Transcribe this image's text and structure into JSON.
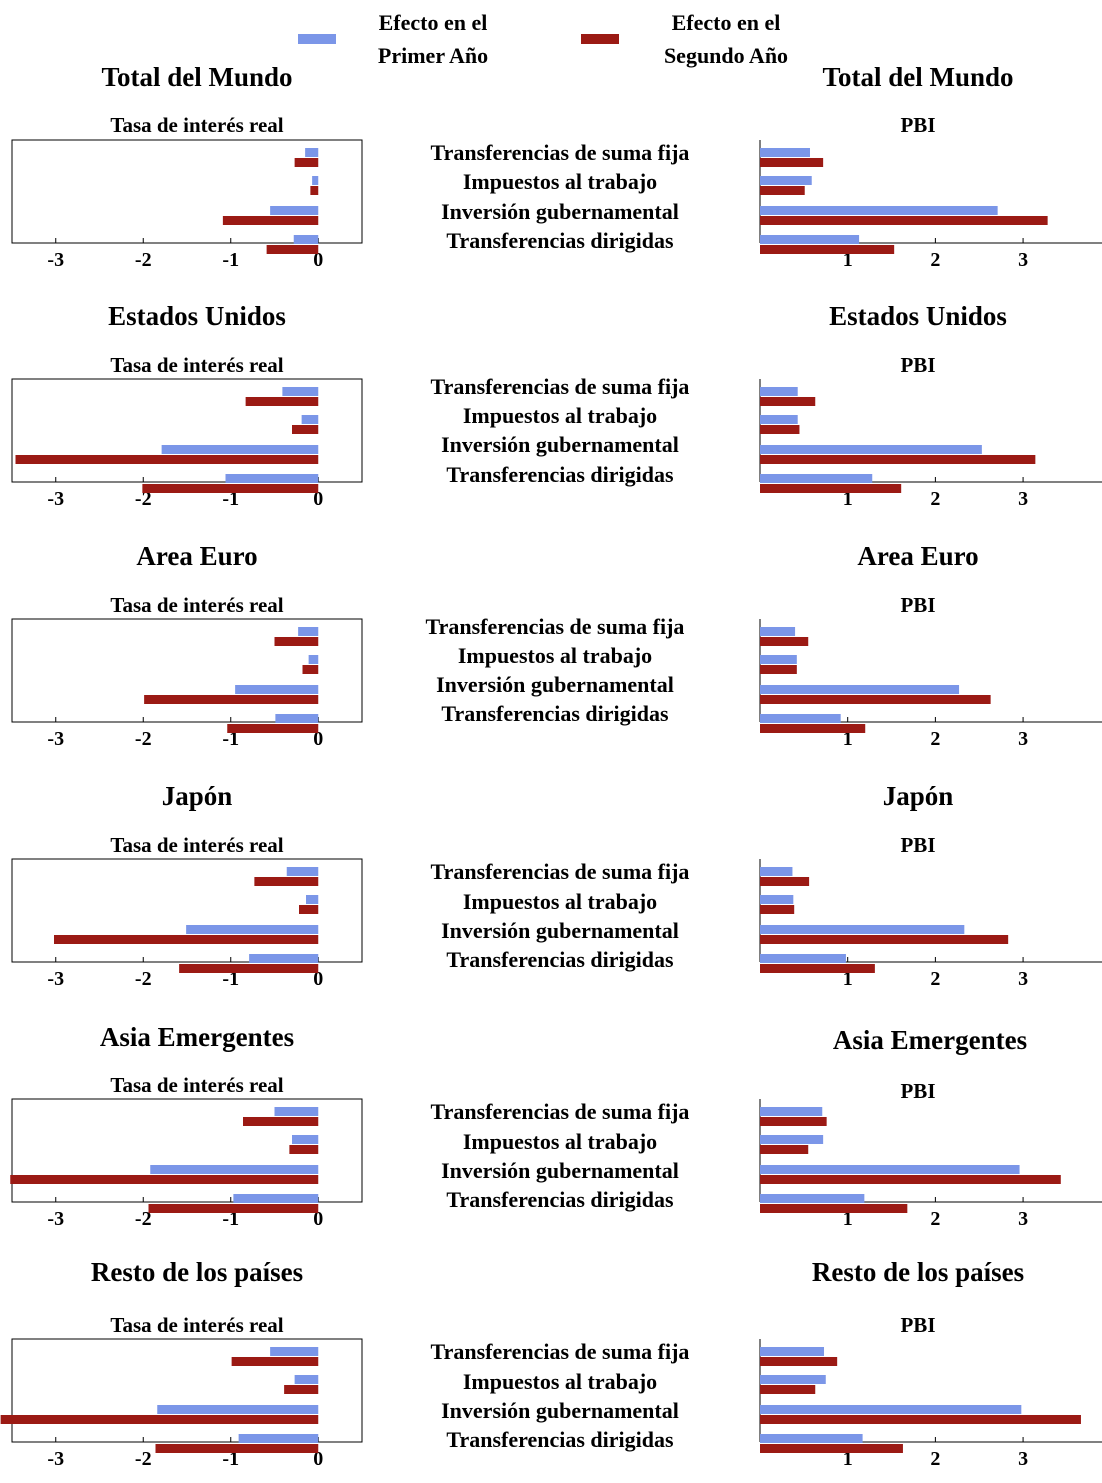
{
  "legend": {
    "items": [
      {
        "label_line1": "Efecto en el",
        "label_line2": "Primer Año",
        "color": "#7b96e8"
      },
      {
        "label_line1": "Efecto en el",
        "label_line2": "Segundo Año",
        "color": "#9b1a14"
      }
    ]
  },
  "colors": {
    "first_year": "#7b96e8",
    "second_year": "#9b1a14"
  },
  "chart_data": [
    {
      "type": "bar",
      "region": "Total del Mundo",
      "title": "Tasa de interés real",
      "xlim": [
        -3.5,
        0.5
      ],
      "xticks": [
        -3,
        -2,
        -1,
        0
      ],
      "categories": [
        "Transferencias de suma fija",
        "Impuestos al trabajo",
        "Inversión gubernamental",
        "Transferencias dirigidas"
      ],
      "series": [
        {
          "name": "Efecto en el Primer Año",
          "values": [
            -0.15,
            -0.07,
            -0.55,
            -0.28
          ]
        },
        {
          "name": "Efecto en el Segundo Año",
          "values": [
            -0.27,
            -0.09,
            -1.09,
            -0.59
          ]
        }
      ]
    },
    {
      "type": "bar",
      "region": "Total del Mundo",
      "title": "PBI",
      "xlim": [
        0,
        3.9
      ],
      "xticks": [
        1,
        2,
        3
      ],
      "categories": [
        "Transferencias de suma fija",
        "Impuestos al trabajo",
        "Inversión gubernamental",
        "Transferencias dirigidas"
      ],
      "series": [
        {
          "name": "Efecto en el Primer Año",
          "values": [
            0.57,
            0.59,
            2.71,
            1.13
          ]
        },
        {
          "name": "Efecto en el Segundo Año",
          "values": [
            0.72,
            0.51,
            3.28,
            1.53
          ]
        }
      ]
    },
    {
      "type": "bar",
      "region": "Estados Unidos",
      "title": "Tasa de interés real",
      "xlim": [
        -3.5,
        0.5
      ],
      "xticks": [
        -3,
        -2,
        -1,
        0
      ],
      "categories": [
        "Transferencias de suma fija",
        "Impuestos al trabajo",
        "Inversión gubernamental",
        "Transferencias dirigidas"
      ],
      "series": [
        {
          "name": "Efecto en el Primer Año",
          "values": [
            -0.41,
            -0.19,
            -1.79,
            -1.06
          ]
        },
        {
          "name": "Efecto en el Segundo Año",
          "values": [
            -0.83,
            -0.3,
            -3.46,
            -2.01
          ]
        }
      ]
    },
    {
      "type": "bar",
      "region": "Estados Unidos",
      "title": "PBI",
      "xlim": [
        0,
        3.9
      ],
      "xticks": [
        1,
        2,
        3
      ],
      "categories": [
        "Transferencias de suma fija",
        "Impuestos al trabajo",
        "Inversión gubernamental",
        "Transferencias dirigidas"
      ],
      "series": [
        {
          "name": "Efecto en el Primer Año",
          "values": [
            0.43,
            0.43,
            2.53,
            1.28
          ]
        },
        {
          "name": "Efecto en el Segundo Año",
          "values": [
            0.63,
            0.45,
            3.14,
            1.61
          ]
        }
      ]
    },
    {
      "type": "bar",
      "region": "Area Euro",
      "title": "Tasa de interés real",
      "xlim": [
        -3.5,
        0.5
      ],
      "xticks": [
        -3,
        -2,
        -1,
        0
      ],
      "categories": [
        "Transferencias de suma fija",
        "Impuestos al trabajo",
        "Inversión gubernamental",
        "Transferencias dirigidas"
      ],
      "series": [
        {
          "name": "Efecto en el Primer Año",
          "values": [
            -0.23,
            -0.11,
            -0.95,
            -0.49
          ]
        },
        {
          "name": "Efecto en el Segundo Año",
          "values": [
            -0.5,
            -0.18,
            -1.99,
            -1.04
          ]
        }
      ]
    },
    {
      "type": "bar",
      "region": "Area Euro",
      "title": "PBI",
      "xlim": [
        0,
        3.9
      ],
      "xticks": [
        1,
        2,
        3
      ],
      "categories": [
        "Transferencias de suma fija",
        "Impuestos al trabajo",
        "Inversión gubernamental",
        "Transferencias dirigidas"
      ],
      "series": [
        {
          "name": "Efecto en el Primer Año",
          "values": [
            0.4,
            0.42,
            2.27,
            0.92
          ]
        },
        {
          "name": "Efecto en el Segundo Año",
          "values": [
            0.55,
            0.42,
            2.63,
            1.2
          ]
        }
      ]
    },
    {
      "type": "bar",
      "region": "Japón",
      "title": "Tasa de interés real",
      "xlim": [
        -3.5,
        0.5
      ],
      "xticks": [
        -3,
        -2,
        -1,
        0
      ],
      "categories": [
        "Transferencias de suma fija",
        "Impuestos al trabajo",
        "Inversión gubernamental",
        "Transferencias dirigidas"
      ],
      "series": [
        {
          "name": "Efecto en el Primer Año",
          "values": [
            -0.36,
            -0.14,
            -1.51,
            -0.79
          ]
        },
        {
          "name": "Efecto en el Segundo Año",
          "values": [
            -0.73,
            -0.22,
            -3.02,
            -1.59
          ]
        }
      ]
    },
    {
      "type": "bar",
      "region": "Japón",
      "title": "PBI",
      "xlim": [
        0,
        3.9
      ],
      "xticks": [
        1,
        2,
        3
      ],
      "categories": [
        "Transferencias de suma fija",
        "Impuestos al trabajo",
        "Inversión gubernamental",
        "Transferencias dirigidas"
      ],
      "series": [
        {
          "name": "Efecto en el Primer Año",
          "values": [
            0.37,
            0.38,
            2.33,
            0.98
          ]
        },
        {
          "name": "Efecto en el Segundo Año",
          "values": [
            0.56,
            0.39,
            2.83,
            1.31
          ]
        }
      ]
    },
    {
      "type": "bar",
      "region": "Asia Emergentes",
      "title": "Tasa de interés real",
      "xlim": [
        -3.5,
        0.5
      ],
      "xticks": [
        -3,
        -2,
        -1,
        0
      ],
      "categories": [
        "Transferencias de suma fija",
        "Impuestos al trabajo",
        "Inversión gubernamental",
        "Transferencias dirigidas"
      ],
      "series": [
        {
          "name": "Efecto en el Primer Año",
          "values": [
            -0.5,
            -0.3,
            -1.92,
            -0.97
          ]
        },
        {
          "name": "Efecto en el Segundo Año",
          "values": [
            -0.86,
            -0.33,
            -3.52,
            -1.94
          ]
        }
      ]
    },
    {
      "type": "bar",
      "region": "Asia Emergentes",
      "title": "PBI",
      "xlim": [
        0,
        3.9
      ],
      "xticks": [
        1,
        2,
        3
      ],
      "categories": [
        "Transferencias de suma fija",
        "Impuestos al trabajo",
        "Inversión gubernamental",
        "Transferencias dirigidas"
      ],
      "series": [
        {
          "name": "Efecto en el Primer Año",
          "values": [
            0.71,
            0.72,
            2.96,
            1.19
          ]
        },
        {
          "name": "Efecto en el Segundo Año",
          "values": [
            0.76,
            0.55,
            3.43,
            1.68
          ]
        }
      ]
    },
    {
      "type": "bar",
      "region": "Resto de los países",
      "title": "Tasa de interés real",
      "xlim": [
        -3.5,
        0.5
      ],
      "xticks": [
        -3,
        -2,
        -1,
        0
      ],
      "categories": [
        "Transferencias de suma fija",
        "Impuestos al trabajo",
        "Inversión gubernamental",
        "Transferencias dirigidas"
      ],
      "series": [
        {
          "name": "Efecto en el Primer Año",
          "values": [
            -0.55,
            -0.27,
            -1.84,
            -0.91
          ]
        },
        {
          "name": "Efecto en el Segundo Año",
          "values": [
            -0.99,
            -0.39,
            -3.63,
            -1.86
          ]
        }
      ]
    },
    {
      "type": "bar",
      "region": "Resto de los países",
      "title": "PBI",
      "xlim": [
        0,
        3.9
      ],
      "xticks": [
        1,
        2,
        3
      ],
      "categories": [
        "Transferencias de suma fija",
        "Impuestos al trabajo",
        "Inversión gubernamental",
        "Transferencias dirigidas"
      ],
      "series": [
        {
          "name": "Efecto en el Primer Año",
          "values": [
            0.73,
            0.75,
            2.98,
            1.17
          ]
        },
        {
          "name": "Efecto en el Segundo Año",
          "values": [
            0.88,
            0.63,
            3.66,
            1.63
          ]
        }
      ]
    }
  ]
}
